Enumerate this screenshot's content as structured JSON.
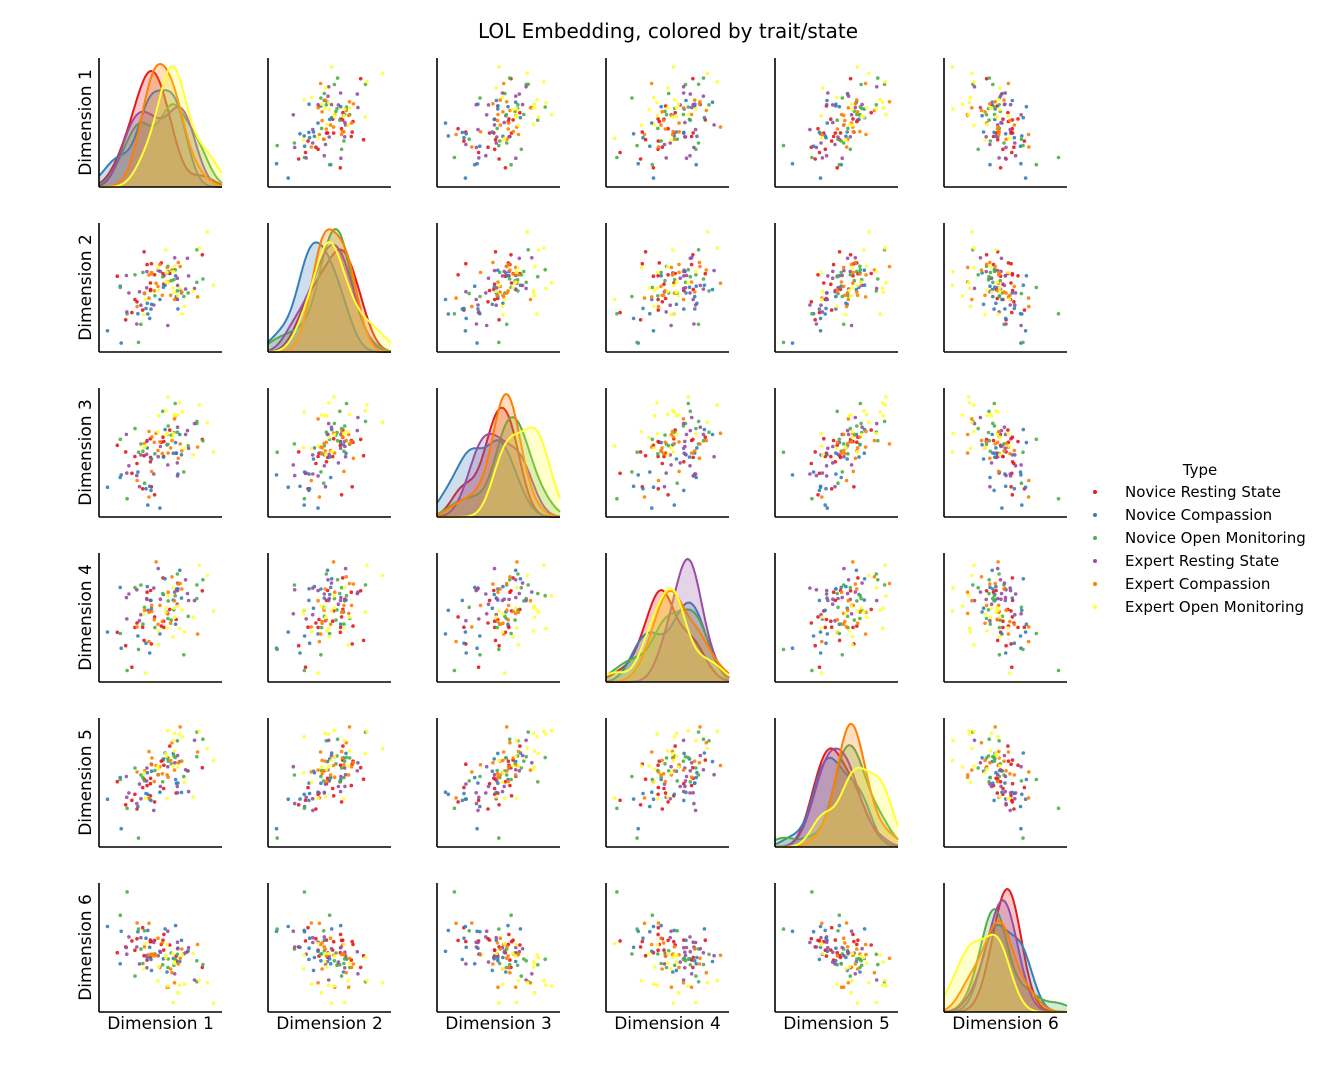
{
  "chart_data": {
    "type": "scatter",
    "title": "LOL Embedding, colored by trait/state",
    "dimensions": [
      "Dimension 1",
      "Dimension 2",
      "Dimension 3",
      "Dimension 4",
      "Dimension 5",
      "Dimension 6"
    ],
    "diagonal": "kde",
    "legend": {
      "title": "Type",
      "placement": "right"
    },
    "series": [
      {
        "name": "Novice Resting State",
        "color": "#e41a1c"
      },
      {
        "name": "Novice Compassion",
        "color": "#377eb8"
      },
      {
        "name": "Novice Open Monitoring",
        "color": "#4daf4a"
      },
      {
        "name": "Expert Resting State",
        "color": "#984ea3"
      },
      {
        "name": "Expert Compassion",
        "color": "#ff7f00"
      },
      {
        "name": "Expert Open Monitoring",
        "color": "#ffff33"
      }
    ]
  }
}
